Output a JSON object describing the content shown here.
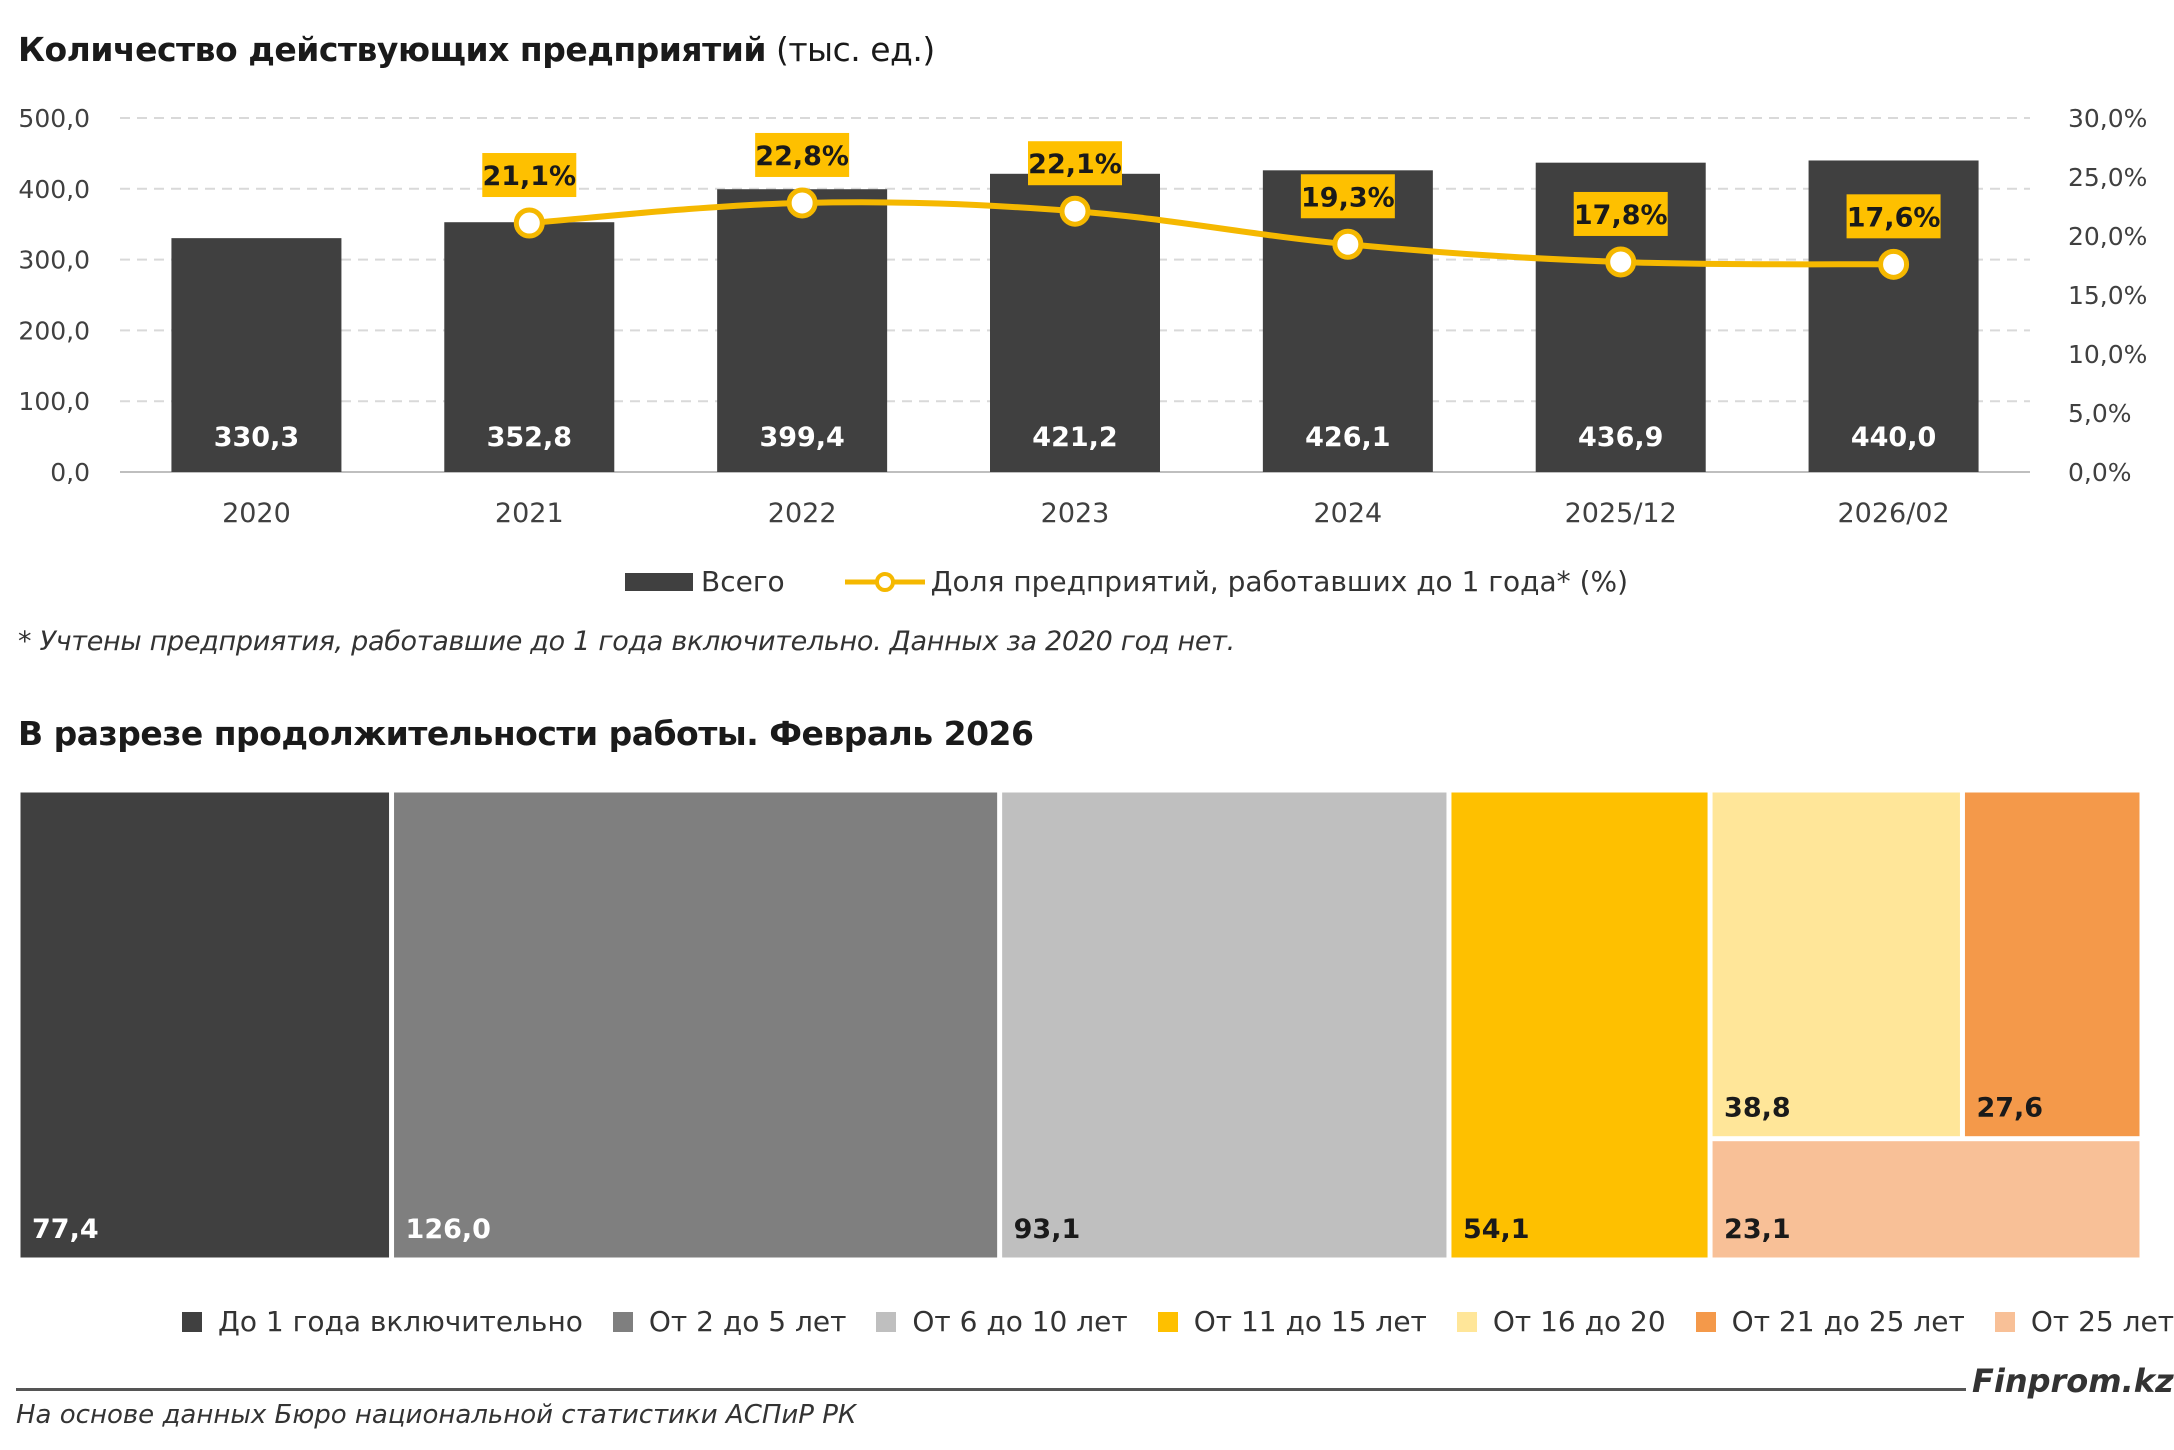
{
  "chart1": {
    "title_bold": "Количество действующих предприятий",
    "title_light": " (тыс. ед.)",
    "note": "* Учтены предприятия, работавшие до 1 года включительно. Данных за 2020 год нет.",
    "legend_bar": "Всего",
    "legend_line": "Доля предприятий, работавших до 1 года* (%)"
  },
  "chart2": {
    "title": "В разрезе продолжительности работы. Февраль 2026"
  },
  "footer": {
    "brand": "Finprom.kz",
    "source": "На основе данных Бюро национальной статистики АСПиР РК"
  },
  "colors": {
    "bar": "#404040",
    "line": "#f5b800",
    "label_bg": "#fec000"
  },
  "chart_data": [
    {
      "type": "bar",
      "categories": [
        "2020",
        "2021",
        "2022",
        "2023",
        "2024",
        "2025/12",
        "2026/02"
      ],
      "series": [
        {
          "name": "Всего",
          "type": "bar",
          "axis": "left",
          "values": [
            330.3,
            352.8,
            399.4,
            421.2,
            426.1,
            436.9,
            440.0
          ],
          "labels": [
            "330,3",
            "352,8",
            "399,4",
            "421,2",
            "426,1",
            "436,9",
            "440,0"
          ]
        },
        {
          "name": "Доля предприятий, работавших до 1 года* (%)",
          "type": "line",
          "axis": "right",
          "values": [
            null,
            21.1,
            22.8,
            22.1,
            19.3,
            17.8,
            17.6
          ],
          "labels": [
            "",
            "21,1%",
            "22,8%",
            "22,1%",
            "19,3%",
            "17,8%",
            "17,6%"
          ]
        }
      ],
      "ylim_left": [
        0,
        500
      ],
      "ylim_right": [
        0,
        30
      ],
      "yticks_left": [
        "0,0",
        "100,0",
        "200,0",
        "300,0",
        "400,0",
        "500,0"
      ],
      "yticks_right": [
        "0,0%",
        "5,0%",
        "10,0%",
        "15,0%",
        "20,0%",
        "25,0%",
        "30,0%"
      ],
      "grid": true,
      "legend": "bottom"
    },
    {
      "type": "treemap",
      "items": [
        {
          "name": "До 1 года включительно",
          "value": 77.4,
          "label": "77,4",
          "color": "#404040",
          "text_color": "#ffffff"
        },
        {
          "name": "От 2 до 5 лет",
          "value": 126.0,
          "label": "126,0",
          "color": "#7f7f7f",
          "text_color": "#ffffff"
        },
        {
          "name": "От 6 до 10 лет",
          "value": 93.1,
          "label": "93,1",
          "color": "#bfbfbf",
          "text_color": "#1a1a1a"
        },
        {
          "name": "От 11 до 15 лет",
          "value": 54.1,
          "label": "54,1",
          "color": "#fec000",
          "text_color": "#1a1a1a"
        },
        {
          "name": "От 16 до 20",
          "value": 38.8,
          "label": "38,8",
          "color": "#ffe699",
          "text_color": "#1a1a1a"
        },
        {
          "name": "От 21 до 25 лет",
          "value": 27.6,
          "label": "27,6",
          "color": "#f4994a",
          "text_color": "#1a1a1a"
        },
        {
          "name": "От 25 лет",
          "value": 23.1,
          "label": "23,1",
          "color": "#f8c097",
          "text_color": "#1a1a1a"
        }
      ],
      "legend": "bottom"
    }
  ]
}
